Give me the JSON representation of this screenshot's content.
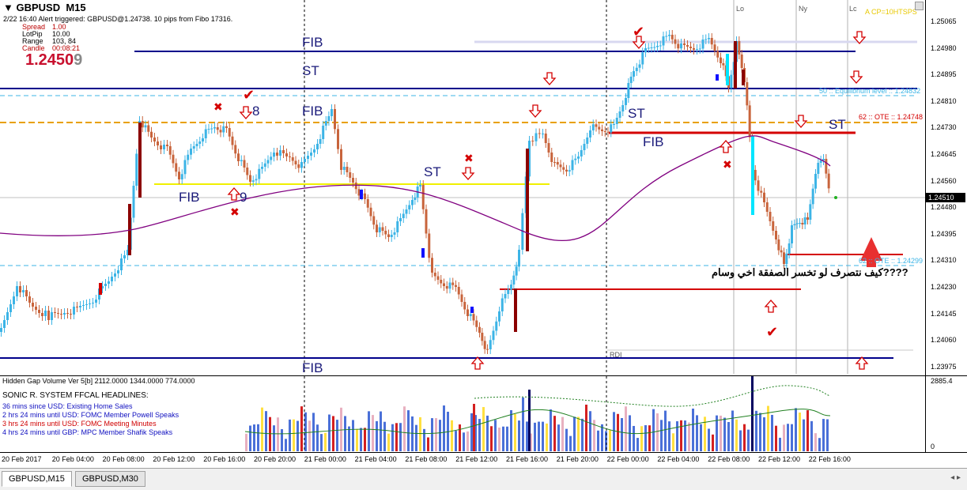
{
  "header": {
    "symbol_tf": "GBPUSD,M15",
    "alert_line": "2/22 16:40 Alert triggered: GBPUSD@1.24738. 10 pips from Fibo 17316.",
    "spread_label": "Spread",
    "spread_value": "1.00",
    "lotpip_label": "LotPip",
    "lotpip_value": "10.00",
    "range_label": "Range",
    "range_value": "103, 84",
    "candle_label": "Candle",
    "candle_value": "00:08:21",
    "bid_main": "1.2450",
    "bid_last": "9",
    "top_right": "A CP=10HTSPS"
  },
  "sessions": {
    "lo": "Lo",
    "ny": "Ny",
    "lc": "Lc"
  },
  "annotations": {
    "fib": "FIB",
    "st": "ST",
    "n8": "8",
    "n9": "9",
    "equilibrium": "50 :: Equilibrium level :: 1.24832",
    "ote_upper": "62 :: OTE :: 1.24748",
    "ote_lower": "62 :: OTE :: 1.24299",
    "rdi": "RDI",
    "arabic_q": "????كيف نتصرف لو تخسر الصفقة اخي وسام"
  },
  "price_scale": [
    "1.25065",
    "1.24980",
    "1.24895",
    "1.24810",
    "1.24730",
    "1.24645",
    "1.24560",
    "1.24480",
    "1.24395",
    "1.24310",
    "1.24230",
    "1.24145",
    "1.24060",
    "1.23975"
  ],
  "current_price": "1.24510",
  "volume_indicator": {
    "title": "Hidden Gap Volume Ver 5[b] 2112.0000 1344.0000 774.0000",
    "scale_top": "2885.4",
    "scale_bottom": "0"
  },
  "headlines": {
    "title": "SONIC R. SYSTEM  FFCAL HEADLINES:",
    "items": [
      {
        "text": "36 mins since USD: Existing Home Sales",
        "color": "#1010c0"
      },
      {
        "text": "2 hrs 24 mins until USD: FOMC Member Powell Speaks",
        "color": "#1010c0"
      },
      {
        "text": "3 hrs 24 mins until USD: FOMC Meeting Minutes",
        "color": "#d00000"
      },
      {
        "text": "4 hrs 24 mins until GBP: MPC Member Shafik Speaks",
        "color": "#1010c0"
      }
    ]
  },
  "time_axis": [
    "20 Feb 2017",
    "20 Feb 04:00",
    "20 Feb 08:00",
    "20 Feb 12:00",
    "20 Feb 16:00",
    "20 Feb 20:00",
    "21 Feb 00:00",
    "21 Feb 04:00",
    "21 Feb 08:00",
    "21 Feb 12:00",
    "21 Feb 16:00",
    "21 Feb 20:00",
    "22 Feb 00:00",
    "22 Feb 04:00",
    "22 Feb 08:00",
    "22 Feb 12:00",
    "22 Feb 16:00"
  ],
  "tabs": [
    {
      "label": "GBPUSD,M15",
      "active": true
    },
    {
      "label": "GBPUSD,M30",
      "active": false
    }
  ],
  "colors": {
    "fib_line": "#00008b",
    "st_line": "#d40000",
    "yellow_line": "#f0f000",
    "ma": "#800080",
    "bull": "#3cb4e6",
    "bear": "#c8643c"
  }
}
